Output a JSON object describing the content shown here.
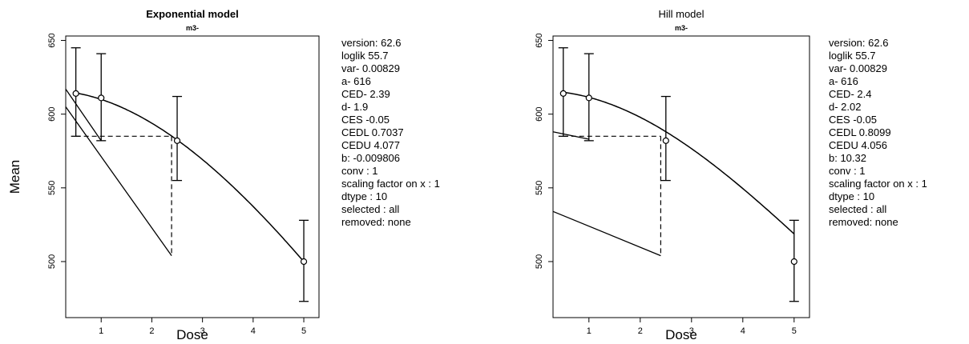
{
  "chart_data": [
    {
      "type": "line",
      "title": "Exponential model",
      "subtitle": "m3-",
      "xlabel": "Dose",
      "ylabel": "Mean",
      "xlim": [
        0.3,
        5.3
      ],
      "ylim": [
        462,
        653
      ],
      "xticks": [
        1,
        2,
        3,
        4,
        5
      ],
      "yticks": [
        500,
        550,
        600,
        650
      ],
      "points": [
        {
          "x": 0.5,
          "y": 614,
          "lo": 585,
          "hi": 645
        },
        {
          "x": 1.0,
          "y": 611,
          "lo": 582,
          "hi": 641
        },
        {
          "x": 2.5,
          "y": 582,
          "lo": 555,
          "hi": 612
        },
        {
          "x": 5.0,
          "y": 500,
          "lo": 473,
          "hi": 528
        }
      ],
      "curve": {
        "model": "exponential",
        "a": 616,
        "b": -0.009806,
        "d": 1.9
      },
      "ced_guide": {
        "ced": 2.39,
        "level": 585
      },
      "extra_lines": [
        [
          [
            0.3,
            617
          ],
          [
            1.0,
            582
          ]
        ],
        [
          [
            0.3,
            605
          ],
          [
            2.39,
            504
          ]
        ]
      ],
      "legend_text": [
        "version: 62.6",
        "loglik   55.7",
        "var-    0.00829",
        "a-    616",
        "CED-    2.39",
        "d-    1.9",
        "CES    -0.05",
        "CEDL    0.7037",
        "CEDU    4.077",
        "b:  -0.009806",
        "conv :  1",
        "scaling factor on x :  1",
        "dtype :  10",
        " selected :  all",
        "removed: none"
      ]
    },
    {
      "type": "line",
      "title": "Hill model",
      "subtitle": "m3-",
      "xlabel": "Dose",
      "ylabel": "",
      "xlim": [
        0.3,
        5.3
      ],
      "ylim": [
        462,
        653
      ],
      "xticks": [
        1,
        2,
        3,
        4,
        5
      ],
      "yticks": [
        500,
        550,
        600,
        650
      ],
      "points": [
        {
          "x": 0.5,
          "y": 614,
          "lo": 585,
          "hi": 645
        },
        {
          "x": 1.0,
          "y": 611,
          "lo": 582,
          "hi": 641
        },
        {
          "x": 2.5,
          "y": 582,
          "lo": 555,
          "hi": 612
        },
        {
          "x": 5.0,
          "y": 500,
          "lo": 473,
          "hi": 528
        }
      ],
      "curve": {
        "model": "hill",
        "a": 616,
        "b": 10.32,
        "d": 2.02
      },
      "ced_guide": {
        "ced": 2.4,
        "level": 585
      },
      "extra_lines": [
        [
          [
            0.3,
            588
          ],
          [
            1.0,
            583
          ]
        ],
        [
          [
            0.3,
            534
          ],
          [
            2.4,
            504
          ]
        ]
      ],
      "legend_text": [
        "version: 62.6",
        "loglik   55.7",
        "var-    0.00829",
        "a-    616",
        "CED-    2.4",
        "d-    2.02",
        "CES    -0.05",
        "CEDL    0.8099",
        "CEDU    4.056",
        "b:  10.32",
        "conv :  1",
        "scaling factor on x :  1",
        "dtype :  10",
        " selected :  all",
        "removed: none"
      ]
    }
  ]
}
